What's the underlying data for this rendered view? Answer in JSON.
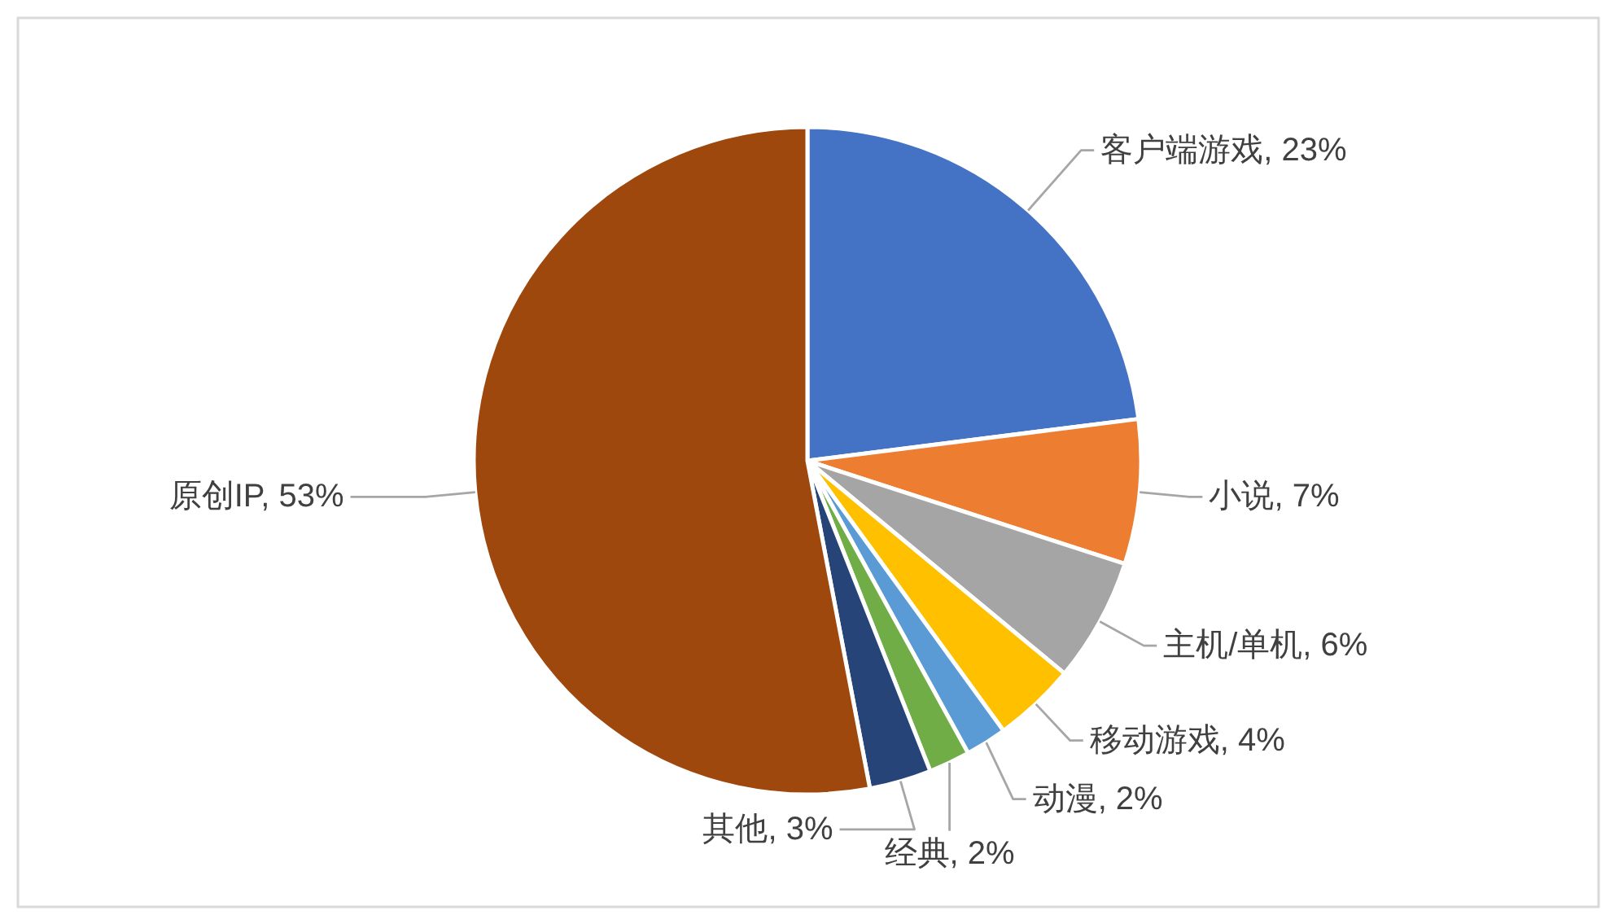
{
  "chart_data": {
    "type": "pie",
    "categories": [
      "客户端游戏",
      "小说",
      "主机/单机",
      "移动游戏",
      "动漫",
      "经典",
      "其他",
      "原创IP"
    ],
    "values": [
      23,
      7,
      6,
      4,
      2,
      2,
      3,
      53
    ],
    "value_labels": [
      "23%",
      "7%",
      "6%",
      "4%",
      "2%",
      "2%",
      "3%",
      "53%"
    ],
    "colors": [
      "#4472c4",
      "#ed7d31",
      "#a5a5a5",
      "#ffc000",
      "#5b9bd5",
      "#70ad47",
      "#264478",
      "#9e480e"
    ]
  }
}
